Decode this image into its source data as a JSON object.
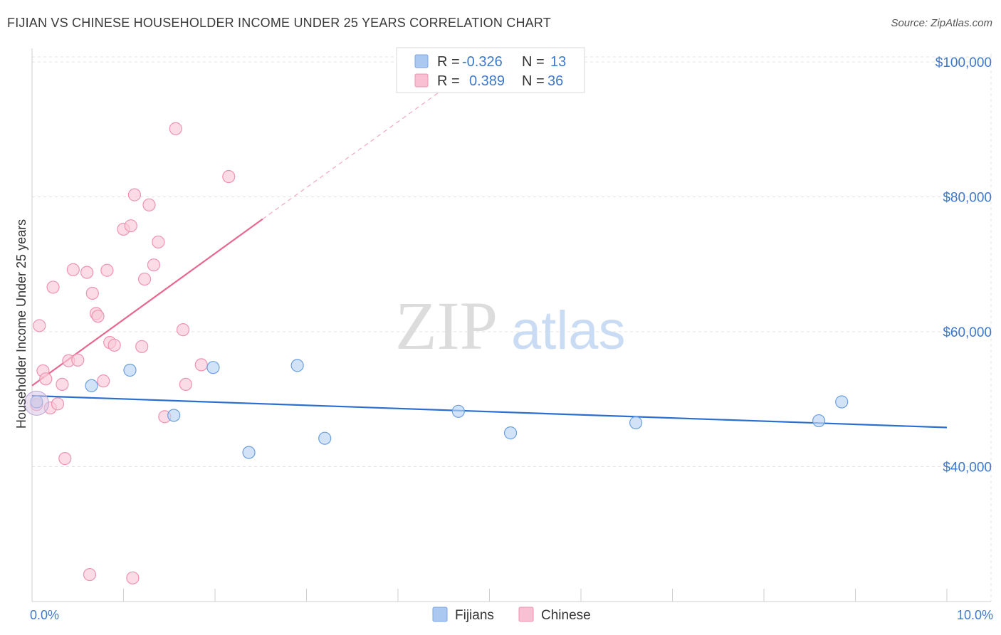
{
  "title": "FIJIAN VS CHINESE HOUSEHOLDER INCOME UNDER 25 YEARS CORRELATION CHART",
  "source": "Source: ZipAtlas.com",
  "watermark": {
    "zip": "ZIP",
    "atlas": "atlas"
  },
  "legend": {
    "rows": [
      {
        "r_label": "R =",
        "r_value": "-0.326",
        "n_label": "N =",
        "n_value": "13",
        "color": "#aac8f0",
        "stroke": "#7aa6e0"
      },
      {
        "r_label": "R =",
        "r_value": "0.389",
        "n_label": "N =",
        "n_value": "36",
        "color": "#f8c0d2",
        "stroke": "#ee93b0"
      }
    ]
  },
  "bottom_legend": [
    {
      "label": "Fijians",
      "color": "#aac8f0",
      "stroke": "#7aa6e0"
    },
    {
      "label": "Chinese",
      "color": "#f8c0d2",
      "stroke": "#ee93b0"
    }
  ],
  "chart_data": {
    "type": "scatter",
    "title": "FIJIAN VS CHINESE HOUSEHOLDER INCOME UNDER 25 YEARS CORRELATION CHART",
    "xlabel": "",
    "ylabel": "Householder Income Under 25 years",
    "xlim": [
      0,
      10
    ],
    "ylim": [
      20000,
      102000
    ],
    "x_tick_labels": [
      {
        "value": 0,
        "label": "0.0%"
      },
      {
        "value": 10,
        "label": "10.0%"
      }
    ],
    "y_tick_labels": [
      {
        "value": 40000,
        "label": "$40,000"
      },
      {
        "value": 60000,
        "label": "$60,000"
      },
      {
        "value": 80000,
        "label": "$80,000"
      },
      {
        "value": 100000,
        "label": "$100,000"
      }
    ],
    "grid": true,
    "legend_position": "top-center",
    "series": [
      {
        "name": "Fijians",
        "color": "#6a9fe0",
        "fill": "#bcd4f3",
        "points": [
          [
            0.05,
            49600
          ],
          [
            0.65,
            52000
          ],
          [
            1.07,
            54300
          ],
          [
            1.55,
            47600
          ],
          [
            1.98,
            54700
          ],
          [
            2.37,
            42100
          ],
          [
            2.9,
            55000
          ],
          [
            3.2,
            44200
          ],
          [
            4.66,
            48200
          ],
          [
            5.23,
            45000
          ],
          [
            6.6,
            46500
          ],
          [
            8.6,
            46800
          ],
          [
            8.85,
            49600
          ]
        ],
        "trend": {
          "x": [
            0,
            10
          ],
          "y": [
            50500,
            45800
          ]
        }
      },
      {
        "name": "Chinese",
        "color": "#ee93b0",
        "fill": "#f9c9d8",
        "points": [
          [
            0.05,
            49200
          ],
          [
            0.08,
            60900
          ],
          [
            0.12,
            54200
          ],
          [
            0.15,
            53000
          ],
          [
            0.2,
            48700
          ],
          [
            0.23,
            66600
          ],
          [
            0.28,
            49300
          ],
          [
            0.33,
            52200
          ],
          [
            0.36,
            41200
          ],
          [
            0.4,
            55700
          ],
          [
            0.45,
            69200
          ],
          [
            0.5,
            55800
          ],
          [
            0.6,
            68800
          ],
          [
            0.63,
            24000
          ],
          [
            0.66,
            65700
          ],
          [
            0.7,
            62700
          ],
          [
            0.72,
            62300
          ],
          [
            0.78,
            52700
          ],
          [
            0.82,
            69100
          ],
          [
            0.85,
            58400
          ],
          [
            0.9,
            58000
          ],
          [
            1.0,
            75200
          ],
          [
            1.08,
            75700
          ],
          [
            1.1,
            23500
          ],
          [
            1.12,
            80300
          ],
          [
            1.2,
            57800
          ],
          [
            1.23,
            67800
          ],
          [
            1.28,
            78800
          ],
          [
            1.33,
            69900
          ],
          [
            1.38,
            73300
          ],
          [
            1.45,
            47400
          ],
          [
            1.57,
            90100
          ],
          [
            1.65,
            60300
          ],
          [
            1.68,
            52200
          ],
          [
            1.85,
            55100
          ],
          [
            2.15,
            83000
          ]
        ],
        "trend": {
          "x": [
            0,
            2.52
          ],
          "y": [
            52000,
            76700
          ]
        },
        "trend_extension": {
          "x": [
            2.52,
            4.5
          ],
          "y": [
            76700,
            96000
          ]
        }
      }
    ]
  }
}
